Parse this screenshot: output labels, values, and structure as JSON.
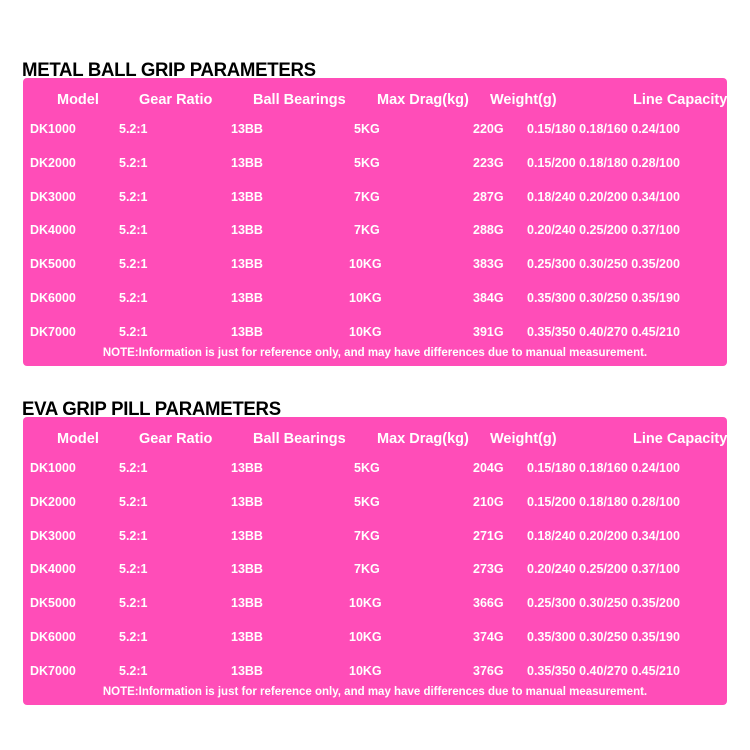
{
  "columns": [
    "Model",
    "Gear Ratio",
    "Ball Bearings",
    "Max Drag(kg)",
    "Weight(g)",
    "Line Capacity(mm/m)"
  ],
  "colors": {
    "table_background": "#ff4db8",
    "text": "#ffffff",
    "title": "#000000"
  },
  "tables": [
    {
      "title": "METAL BALL GRIP PARAMETERS",
      "rows": [
        [
          "DK1000",
          "5.2:1",
          "13BB",
          "5KG",
          "220G",
          "0.15/180 0.18/160 0.24/100"
        ],
        [
          "DK2000",
          "5.2:1",
          "13BB",
          "5KG",
          "223G",
          "0.15/200 0.18/180 0.28/100"
        ],
        [
          "DK3000",
          "5.2:1",
          "13BB",
          "7KG",
          "287G",
          "0.18/240 0.20/200 0.34/100"
        ],
        [
          "DK4000",
          "5.2:1",
          "13BB",
          "7KG",
          "288G",
          "0.20/240 0.25/200 0.37/100"
        ],
        [
          "DK5000",
          "5.2:1",
          "13BB",
          "10KG",
          "383G",
          "0.25/300 0.30/250 0.35/200"
        ],
        [
          "DK6000",
          "5.2:1",
          "13BB",
          "10KG",
          "384G",
          "0.35/300 0.30/250 0.35/190"
        ],
        [
          "DK7000",
          "5.2:1",
          "13BB",
          "10KG",
          "391G",
          "0.35/350 0.40/270 0.45/210"
        ]
      ],
      "note": "NOTE:Information is just for reference only, and may have differences due to manual measurement."
    },
    {
      "title": "EVA GRIP PILL PARAMETERS",
      "rows": [
        [
          "DK1000",
          "5.2:1",
          "13BB",
          "5KG",
          "204G",
          "0.15/180 0.18/160 0.24/100"
        ],
        [
          "DK2000",
          "5.2:1",
          "13BB",
          "5KG",
          "210G",
          "0.15/200 0.18/180 0.28/100"
        ],
        [
          "DK3000",
          "5.2:1",
          "13BB",
          "7KG",
          "271G",
          "0.18/240 0.20/200 0.34/100"
        ],
        [
          "DK4000",
          "5.2:1",
          "13BB",
          "7KG",
          "273G",
          "0.20/240 0.25/200 0.37/100"
        ],
        [
          "DK5000",
          "5.2:1",
          "13BB",
          "10KG",
          "366G",
          "0.25/300 0.30/250 0.35/200"
        ],
        [
          "DK6000",
          "5.2:1",
          "13BB",
          "10KG",
          "374G",
          "0.35/300 0.30/250 0.35/190"
        ],
        [
          "DK7000",
          "5.2:1",
          "13BB",
          "10KG",
          "376G",
          "0.35/350 0.40/270 0.45/210"
        ]
      ],
      "note": "NOTE:Information is just for reference only, and may have differences due to manual measurement."
    }
  ]
}
